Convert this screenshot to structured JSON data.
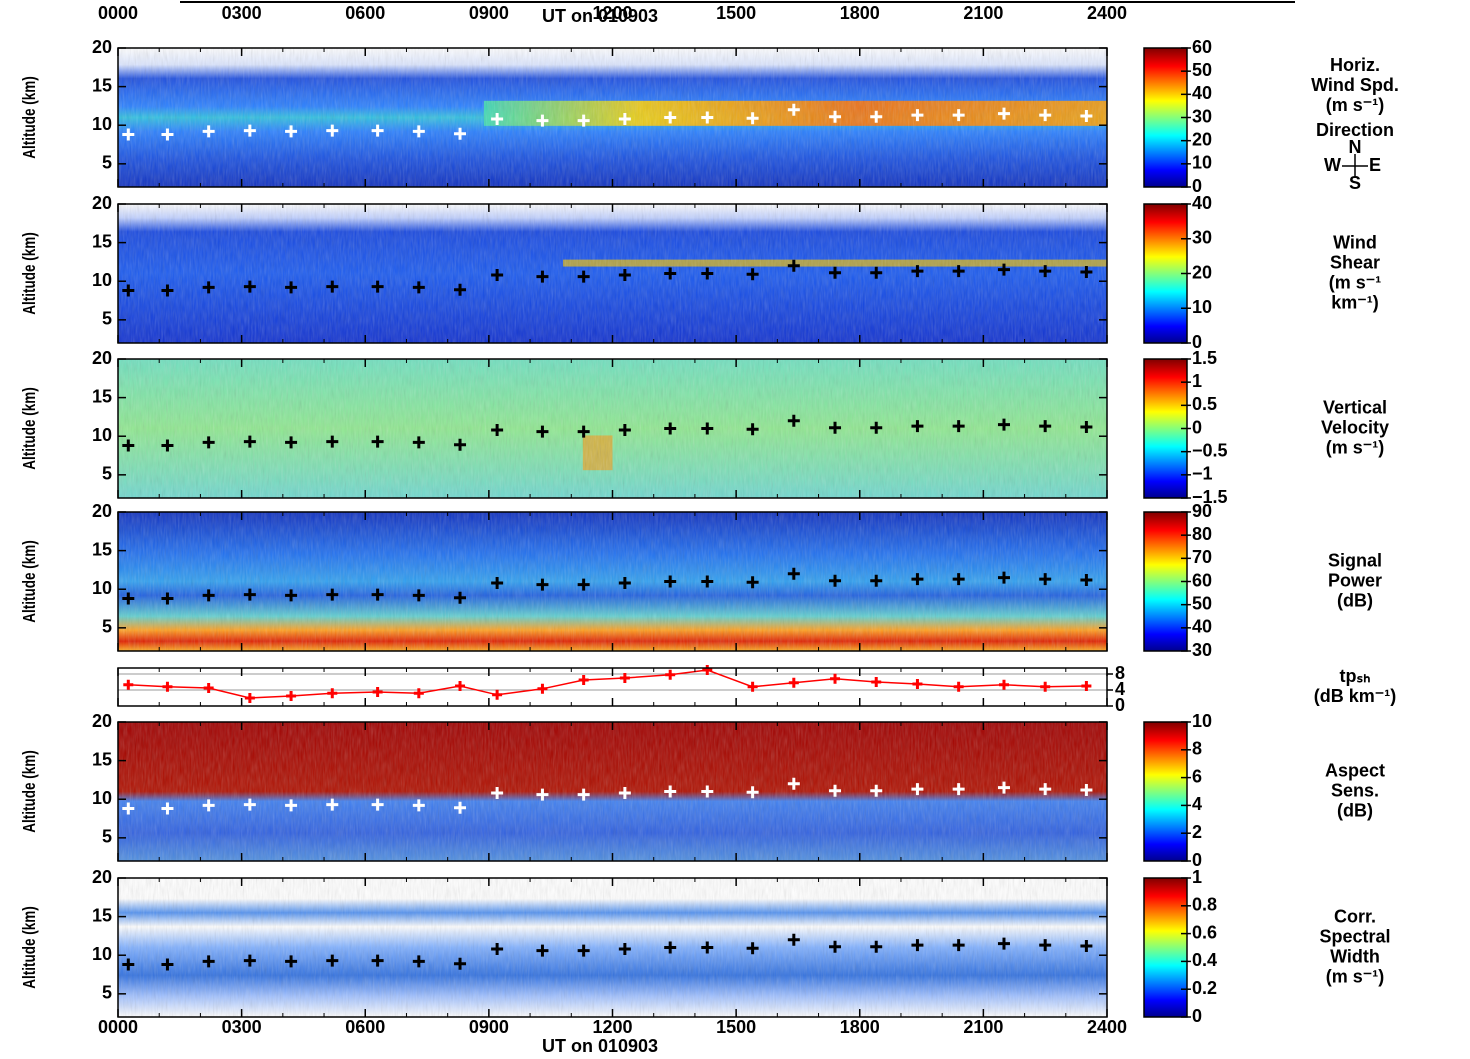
{
  "chart_data": {
    "type": "multipanel",
    "xlabel": "UT on 010903",
    "xlim": [
      0,
      24
    ],
    "xticks": [
      {
        "value": 0,
        "label": "0000"
      },
      {
        "value": 3,
        "label": "0300"
      },
      {
        "value": 6,
        "label": "0600"
      },
      {
        "value": 9,
        "label": "0900"
      },
      {
        "value": 12,
        "label": "1200"
      },
      {
        "value": 15,
        "label": "1500"
      },
      {
        "value": 18,
        "label": "1800"
      },
      {
        "value": 21,
        "label": "2100"
      },
      {
        "value": 24,
        "label": "2400"
      }
    ],
    "tropopause_x": [
      0.25,
      1.2,
      2.2,
      3.2,
      4.2,
      5.2,
      6.3,
      7.3,
      8.3,
      9.2,
      10.3,
      11.3,
      12.3,
      13.4,
      14.3,
      15.4,
      16.4,
      17.4,
      18.4,
      19.4,
      20.4,
      21.5,
      22.5,
      23.5
    ],
    "tropopause_height": [
      8.8,
      8.8,
      9.2,
      9.3,
      9.2,
      9.3,
      9.3,
      9.2,
      8.9,
      10.8,
      10.6,
      10.6,
      10.8,
      11.0,
      11.0,
      10.9,
      12.0,
      11.1,
      11.1,
      11.3,
      11.3,
      11.5,
      11.3,
      11.2
    ],
    "panels": [
      {
        "type": "heatmap",
        "ylabel": "Altitude (km)",
        "ylim": [
          2,
          20
        ],
        "yticks": [
          5,
          10,
          15,
          20
        ],
        "marker_color": "#ffffff",
        "label": [
          "Horiz.",
          "Wind Spd.",
          "(m s⁻¹)"
        ],
        "direction": {
          "title": "Direction",
          "n": "N",
          "s": "S",
          "w": "W",
          "e": "E"
        },
        "colorbar": {
          "lim": [
            0,
            60
          ],
          "ticks": [
            0,
            10,
            20,
            30,
            40,
            50,
            60
          ]
        }
      },
      {
        "type": "heatmap",
        "ylabel": "Altitude (km)",
        "ylim": [
          2,
          20
        ],
        "yticks": [
          5,
          10,
          15,
          20
        ],
        "marker_color": "#000000",
        "label": [
          "Wind",
          "Shear",
          "(m s⁻¹",
          "km⁻¹)"
        ],
        "colorbar": {
          "lim": [
            0,
            40
          ],
          "ticks": [
            0,
            10,
            20,
            30,
            40
          ]
        }
      },
      {
        "type": "heatmap",
        "ylabel": "Altitude (km)",
        "ylim": [
          2,
          20
        ],
        "yticks": [
          5,
          10,
          15,
          20
        ],
        "marker_color": "#000000",
        "label": [
          "Vertical",
          "Velocity",
          "(m s⁻¹)"
        ],
        "colorbar": {
          "lim": [
            -1.5,
            1.5
          ],
          "ticks": [
            {
              "value": -1.5,
              "label": "−1.5"
            },
            {
              "value": -1,
              "label": "−1"
            },
            {
              "value": -0.5,
              "label": "−0.5"
            },
            0,
            0.5,
            1,
            1.5
          ]
        }
      },
      {
        "type": "heatmap",
        "ylabel": "Altitude (km)",
        "ylim": [
          2,
          20
        ],
        "yticks": [
          5,
          10,
          15,
          20
        ],
        "marker_color": "#000000",
        "label": [
          "Signal",
          "Power",
          "(dB)"
        ],
        "colorbar": {
          "lim": [
            30,
            90
          ],
          "ticks": [
            30,
            40,
            50,
            60,
            70,
            80,
            90
          ]
        }
      },
      {
        "type": "line",
        "ylim": [
          0,
          9.5
        ],
        "yticks": [
          0,
          4,
          8
        ],
        "color": "#ff0000",
        "label": [
          "tpₛₕ",
          "(dB km⁻¹)"
        ],
        "values": [
          5.3,
          4.8,
          4.5,
          2.0,
          2.5,
          3.2,
          3.5,
          3.2,
          5.0,
          2.8,
          4.3,
          6.5,
          7.0,
          7.8,
          9.0,
          4.8,
          5.8,
          6.8,
          6.0,
          5.5,
          4.8,
          5.3,
          4.8,
          5.0
        ]
      },
      {
        "type": "heatmap",
        "ylabel": "Altitude (km)",
        "ylim": [
          2,
          20
        ],
        "yticks": [
          5,
          10,
          15,
          20
        ],
        "marker_color": "#ffffff",
        "label": [
          "Aspect",
          "Sens.",
          "(dB)"
        ],
        "colorbar": {
          "lim": [
            0,
            10
          ],
          "ticks": [
            0,
            2,
            4,
            6,
            8,
            10
          ]
        }
      },
      {
        "type": "heatmap",
        "ylabel": "Altitude (km)",
        "ylim": [
          2,
          20
        ],
        "yticks": [
          5,
          10,
          15,
          20
        ],
        "marker_color": "#000000",
        "label": [
          "Corr.",
          "Spectral",
          "Width",
          "(m s⁻¹)"
        ],
        "colorbar": {
          "lim": [
            0,
            1
          ],
          "ticks": [
            0,
            0.2,
            0.4,
            0.6,
            0.8,
            1
          ]
        }
      }
    ]
  }
}
